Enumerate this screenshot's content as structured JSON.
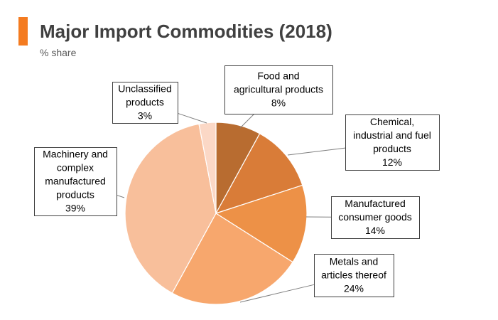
{
  "header": {
    "title": "Major Import Commodities (2018)",
    "subtitle": "% share",
    "accent_color": "#f47b20"
  },
  "chart_data": {
    "type": "pie",
    "title": "Major Import Commodities (2018)",
    "subtitle": "% share",
    "unit": "%",
    "start_angle_deg": 0,
    "direction": "clockwise",
    "slices": [
      {
        "label_lines": [
          "Food and",
          "agricultural products"
        ],
        "value": 8,
        "value_label": "8%",
        "color": "#b86c30"
      },
      {
        "label_lines": [
          "Chemical,",
          "industrial and fuel",
          "products"
        ],
        "value": 12,
        "value_label": "12%",
        "color": "#d97c38"
      },
      {
        "label_lines": [
          "Manufactured",
          "consumer goods"
        ],
        "value": 14,
        "value_label": "14%",
        "color": "#ed9147"
      },
      {
        "label_lines": [
          "Metals and",
          "articles thereof"
        ],
        "value": 24,
        "value_label": "24%",
        "color": "#f7a76d"
      },
      {
        "label_lines": [
          "Machinery and",
          "complex",
          "manufactured",
          "products"
        ],
        "value": 39,
        "value_label": "39%",
        "color": "#f8bf9b"
      },
      {
        "label_lines": [
          "Unclassified",
          "products"
        ],
        "value": 3,
        "value_label": "3%",
        "color": "#fbd8c6"
      }
    ]
  }
}
